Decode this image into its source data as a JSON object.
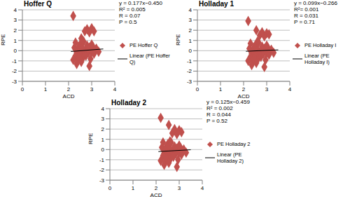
{
  "chart_data": [
    {
      "type": "scatter",
      "title": "Hoffer Q",
      "x_label": "ACD",
      "y_label": "RPE",
      "xlim": [
        0,
        4
      ],
      "ylim": [
        -3,
        4
      ],
      "xticks": [
        0,
        1,
        2,
        3,
        4
      ],
      "yticks": [
        -3,
        -2,
        -1,
        0,
        1,
        2,
        3,
        4
      ],
      "grid": true,
      "legend": "right",
      "annotations": [
        "y = 0.177x−0.450",
        "R² = 0.005",
        "R = 0.07",
        "P = 0.5"
      ],
      "series": [
        {
          "name": "PE Hoffer Q",
          "color": "#c0504d",
          "marker": "diamond",
          "x": [
            2.2,
            2.25,
            2.3,
            2.3,
            2.35,
            2.4,
            2.4,
            2.45,
            2.5,
            2.5,
            2.55,
            2.6,
            2.6,
            2.65,
            2.7,
            2.7,
            2.75,
            2.8,
            2.8,
            2.85,
            2.9,
            2.9,
            2.95,
            3.0,
            3.0,
            3.05,
            3.1,
            3.1,
            3.2,
            3.3,
            2.35,
            2.45,
            2.55,
            2.65,
            2.75,
            2.85,
            3.0,
            2.2,
            2.6,
            2.9
          ],
          "values": [
            3.4,
            0.3,
            -0.5,
            0.8,
            -0.2,
            0.1,
            -1.0,
            0.4,
            -0.3,
            0.6,
            1.2,
            -0.1,
            0.2,
            -0.6,
            1.9,
            0.0,
            -0.4,
            2.1,
            0.5,
            -0.2,
            1.8,
            0.3,
            -0.8,
            2.2,
            -0.1,
            0.4,
            1.9,
            -0.3,
            0.2,
            -0.1,
            -1.3,
            -0.7,
            -1.1,
            0.9,
            -0.5,
            0.1,
            0.6,
            -0.9,
            1.0,
            -1.5
          ]
        },
        {
          "name": "Linear (PE Hoffer Q)",
          "type": "line",
          "color": "#000000",
          "line_style": "solid",
          "x": [
            2.1,
            3.5
          ],
          "values": [
            -0.08,
            0.17
          ]
        }
      ]
    },
    {
      "type": "scatter",
      "title": "Holladay 1",
      "x_label": "ACD",
      "y_label": "RPE",
      "xlim": [
        0,
        4
      ],
      "ylim": [
        -3,
        4
      ],
      "xticks": [
        0,
        1,
        2,
        3,
        4
      ],
      "yticks": [
        -3,
        -2,
        -1,
        0,
        1,
        2,
        3,
        4
      ],
      "grid": true,
      "legend": "right",
      "annotations": [
        "y = 0.099x−0.266",
        "R²= 0.001",
        "R = 0.031",
        "P = 0.71"
      ],
      "series": [
        {
          "name": "PE Holladay I",
          "color": "#c0504d",
          "marker": "diamond",
          "x": [
            2.2,
            2.25,
            2.3,
            2.3,
            2.35,
            2.4,
            2.4,
            2.45,
            2.5,
            2.5,
            2.55,
            2.6,
            2.6,
            2.65,
            2.7,
            2.7,
            2.75,
            2.8,
            2.8,
            2.85,
            2.9,
            2.9,
            2.95,
            3.0,
            3.0,
            3.05,
            3.1,
            3.1,
            3.2,
            3.3,
            2.35,
            2.45,
            2.55,
            2.65,
            2.75,
            2.85,
            3.0,
            2.2,
            2.6,
            2.9
          ],
          "values": [
            2.9,
            0.2,
            -0.6,
            0.7,
            -0.3,
            0.0,
            -1.1,
            0.3,
            -0.4,
            0.5,
            2.0,
            -0.2,
            0.1,
            -0.7,
            1.5,
            -0.1,
            -0.5,
            1.8,
            0.4,
            -0.3,
            1.4,
            0.2,
            -0.9,
            1.7,
            -0.2,
            0.3,
            1.6,
            -0.4,
            0.1,
            -0.2,
            -1.4,
            -0.8,
            -1.2,
            0.8,
            -0.6,
            0.0,
            0.5,
            -1.0,
            0.9,
            -1.6
          ]
        },
        {
          "name": "Linear (PE Holladay I)",
          "type": "line",
          "color": "#000000",
          "line_style": "solid",
          "x": [
            2.1,
            3.5
          ],
          "values": [
            -0.06,
            0.08
          ]
        }
      ]
    },
    {
      "type": "scatter",
      "title": "Holladay 2",
      "x_label": "ACD",
      "y_label": "RPE",
      "xlim": [
        0,
        4
      ],
      "ylim": [
        -3,
        4
      ],
      "xticks": [
        0,
        1,
        2,
        3,
        4
      ],
      "yticks": [
        -3,
        -2,
        -1,
        0,
        1,
        2,
        3,
        4
      ],
      "grid": true,
      "legend": "right",
      "annotations": [
        "y = 0.125x−0.459",
        "R² = 0.002",
        "R = 0.044",
        "P = 0.52"
      ],
      "series": [
        {
          "name": "PE Holladay 2",
          "color": "#c0504d",
          "marker": "diamond",
          "x": [
            2.2,
            2.25,
            2.3,
            2.3,
            2.35,
            2.4,
            2.4,
            2.45,
            2.5,
            2.5,
            2.55,
            2.6,
            2.6,
            2.65,
            2.7,
            2.7,
            2.75,
            2.8,
            2.8,
            2.85,
            2.9,
            2.9,
            2.95,
            3.0,
            3.0,
            3.05,
            3.1,
            3.1,
            3.2,
            3.3,
            2.35,
            2.45,
            2.55,
            2.65,
            2.75,
            2.85,
            3.0,
            2.2,
            2.6,
            2.9
          ],
          "values": [
            3.1,
            0.2,
            -0.6,
            0.7,
            -0.4,
            0.0,
            -1.2,
            0.3,
            -0.5,
            0.5,
            2.4,
            -0.3,
            0.1,
            -0.8,
            1.6,
            -0.2,
            -0.6,
            2.0,
            0.3,
            -0.4,
            1.5,
            0.1,
            -1.0,
            1.9,
            -0.3,
            0.2,
            1.7,
            -0.5,
            0.0,
            -0.3,
            -1.5,
            -0.9,
            -1.3,
            0.7,
            -0.7,
            -0.1,
            0.4,
            -1.1,
            0.8,
            -1.7
          ]
        },
        {
          "name": "Linear (PE Holladay 2)",
          "type": "line",
          "color": "#000000",
          "line_style": "solid",
          "x": [
            2.1,
            3.5
          ],
          "values": [
            -0.2,
            -0.02
          ]
        }
      ]
    }
  ]
}
